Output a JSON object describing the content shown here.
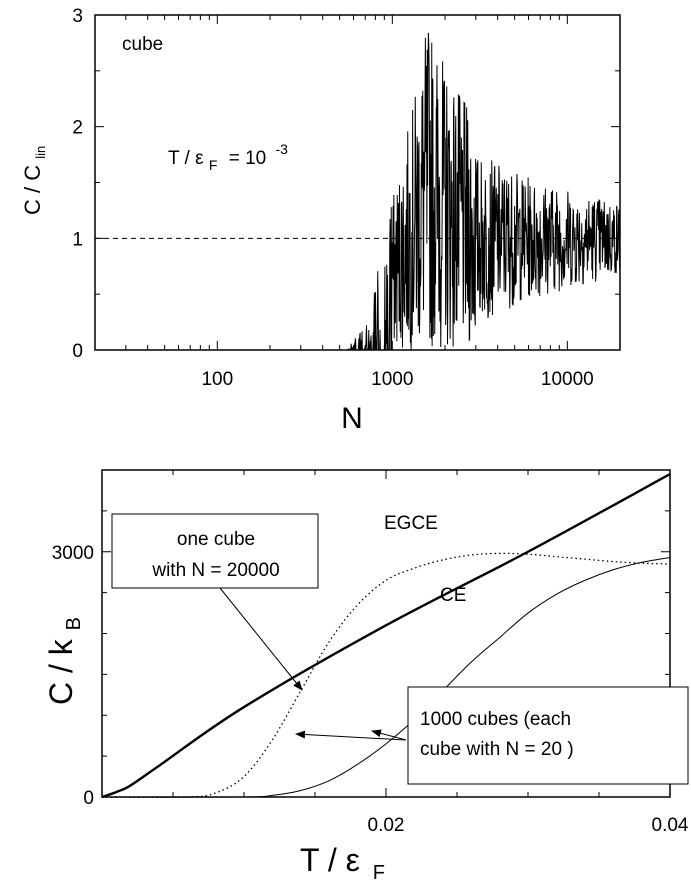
{
  "chart_data": [
    {
      "type": "line",
      "annotation": "cube",
      "ylabel": "C / C",
      "ylabel_sub": "lin",
      "xlabel": "N",
      "xscale": "log",
      "xlim": [
        20,
        20000
      ],
      "ylim": [
        0,
        3
      ],
      "xticks": [
        100,
        1000,
        10000
      ],
      "xtick_labels": [
        "100",
        "1000",
        "10000"
      ],
      "yticks": [
        0,
        1,
        2,
        3
      ],
      "ytick_labels": [
        "0",
        "1",
        "2",
        "3"
      ],
      "formula": {
        "lhs": "T / ε",
        "sub": "F",
        "eq": "= 10",
        "sup": "-3"
      },
      "reference_line": {
        "y": 1,
        "style": "dashed"
      },
      "series": [
        {
          "style": "solid",
          "seed": 7,
          "description_envelope": [
            [
              20,
              0
            ],
            [
              550,
              0
            ],
            [
              700,
              0.15
            ],
            [
              900,
              0.6
            ],
            [
              1000,
              1.0
            ],
            [
              1300,
              1.6
            ],
            [
              1600,
              2.2
            ],
            [
              2000,
              1.9
            ],
            [
              3000,
              1.5
            ],
            [
              6000,
              1.3
            ],
            [
              20000,
              1.1
            ]
          ]
        }
      ]
    },
    {
      "type": "line",
      "ylabel": "C / k",
      "ylabel_sub": "B",
      "xlabel": "T / ε",
      "xlabel_sub": "F",
      "xlim": [
        0,
        0.04
      ],
      "ylim": [
        0,
        4000
      ],
      "xticks": [
        0.02,
        0.04
      ],
      "xtick_labels": [
        "0.02",
        "0.04"
      ],
      "yticks": [
        0,
        3000
      ],
      "ytick_labels": [
        "0",
        "3000"
      ],
      "series": [
        {
          "name": "one cube with N = 20000",
          "style": "thick",
          "x": [
            0,
            0.001,
            0.002,
            0.004,
            0.01,
            0.02,
            0.03,
            0.04
          ],
          "y": [
            0,
            60,
            140,
            380,
            1100,
            2100,
            3000,
            3950
          ]
        },
        {
          "name": "EGCE",
          "style": "dotted",
          "x": [
            0,
            0.006,
            0.008,
            0.01,
            0.012,
            0.014,
            0.016,
            0.018,
            0.02,
            0.022,
            0.024,
            0.026,
            0.028,
            0.03,
            0.032,
            0.034,
            0.036,
            0.038,
            0.04
          ],
          "y": [
            0,
            0,
            50,
            250,
            700,
            1300,
            1900,
            2350,
            2650,
            2800,
            2900,
            2960,
            2980,
            2970,
            2940,
            2910,
            2880,
            2860,
            2850
          ]
        },
        {
          "name": "CE",
          "style": "solid",
          "x": [
            0,
            0.01,
            0.012,
            0.014,
            0.016,
            0.018,
            0.02,
            0.022,
            0.024,
            0.026,
            0.028,
            0.03,
            0.032,
            0.034,
            0.036,
            0.038,
            0.04
          ],
          "y": [
            0,
            0,
            20,
            80,
            200,
            400,
            650,
            950,
            1300,
            1650,
            1950,
            2250,
            2480,
            2650,
            2780,
            2870,
            2930
          ]
        }
      ],
      "labels": {
        "egce": "EGCE",
        "ce": "CE"
      },
      "box_one": {
        "line1": "one  cube",
        "line2": "with N = 20000"
      },
      "box_many": {
        "line1": "1000 cubes (each",
        "line2": "cube  with N = 20 )"
      }
    }
  ]
}
